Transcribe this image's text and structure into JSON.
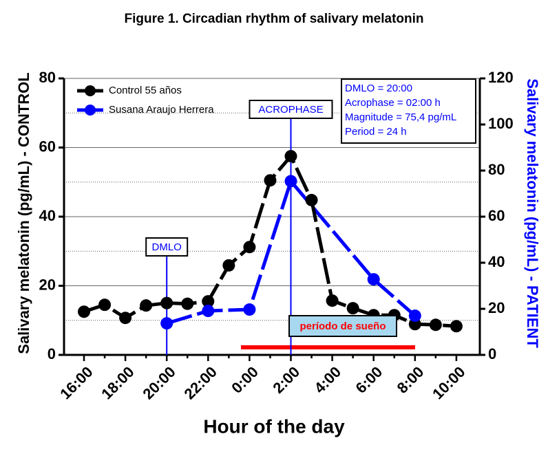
{
  "chart_data": {
    "type": "line",
    "title": "Figure 1. Circadian rhythm of salivary melatonin",
    "x_label": "Hour of the day",
    "y_label": "Salivary melatonin (pg/mL) - CONTROL",
    "y2_label": "Salivary melatonin (pg/mL) - PATIENT",
    "categories": [
      "16:00",
      null,
      "18:00",
      null,
      "20:00",
      null,
      "22:00",
      null,
      "0:00",
      null,
      "2:00",
      null,
      "4:00",
      null,
      "6:00",
      null,
      "8:00",
      null,
      "10:00"
    ],
    "series": [
      {
        "name": "Control 55 años",
        "color": "#000000",
        "values": [
          12.5,
          14.5,
          10.7,
          14.3,
          15,
          14.8,
          15.5,
          25.9,
          31.2,
          50.5,
          57.5,
          44.8,
          15.7,
          13.5,
          11.5,
          11.5,
          8.9,
          8.7,
          8.3
        ]
      },
      {
        "name": "Susana Araujo Herrera",
        "color": "#0000ff",
        "axis": "y2",
        "x": [
          "20:00",
          "22:00",
          "0:00",
          "2:00",
          "6:00",
          "8:00"
        ],
        "values": [
          13.7,
          19.1,
          19.7,
          75.4,
          32.8,
          17
        ]
      }
    ],
    "ylim": [
      0,
      80
    ],
    "yticks": [
      0,
      20,
      40,
      60,
      80
    ],
    "yminor": [
      10,
      30,
      50,
      70
    ],
    "y2lim": [
      0,
      120
    ],
    "y2ticks": [
      0,
      20,
      40,
      60,
      80,
      100,
      120
    ],
    "grid": true,
    "annotations": {
      "dmlo": {
        "label": "DMLO",
        "at": "20:00"
      },
      "acrophase": {
        "label": "ACROPHASE",
        "at": "2:00"
      },
      "info": [
        "DMLO = 20:00",
        "Acrophase = 02:00 h",
        "Magnitude = 75,4 pg/mL",
        "Period = 24 h"
      ],
      "sleep": "período de sueño"
    }
  }
}
